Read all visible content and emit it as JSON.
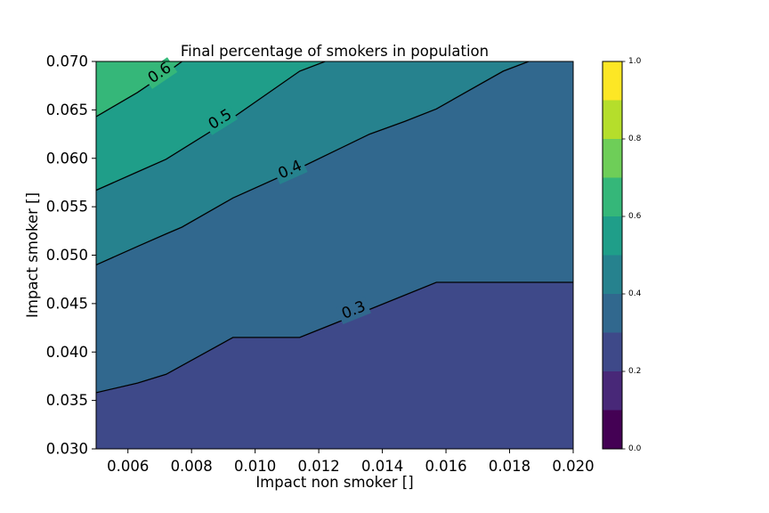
{
  "chart_data": {
    "type": "contour",
    "title": "Final percentage of smokers in population",
    "xlabel": "Impact non smoker []",
    "ylabel": "Impact smoker []",
    "xlim": [
      0.005,
      0.02
    ],
    "ylim": [
      0.03,
      0.07
    ],
    "x_ticks": [
      0.006,
      0.008,
      0.01,
      0.012,
      0.014,
      0.016,
      0.018,
      0.02
    ],
    "x_tick_labels": [
      "0.006",
      "0.008",
      "0.010",
      "0.012",
      "0.014",
      "0.016",
      "0.018",
      "0.020"
    ],
    "y_ticks": [
      0.03,
      0.035,
      0.04,
      0.045,
      0.05,
      0.055,
      0.06,
      0.065,
      0.07
    ],
    "y_tick_labels": [
      "0.030",
      "0.035",
      "0.040",
      "0.045",
      "0.050",
      "0.055",
      "0.060",
      "0.065",
      "0.070"
    ],
    "levels": [
      0.0,
      0.1,
      0.2,
      0.3,
      0.4,
      0.5,
      0.6,
      0.7,
      0.8,
      0.9,
      1.0
    ],
    "level_colors": [
      "#440154",
      "#482878",
      "#3e4989",
      "#31688e",
      "#26828e",
      "#1f9e89",
      "#35b779",
      "#6ece58",
      "#b5de2b",
      "#fde725"
    ],
    "contour_lines": [
      {
        "level": 0.3,
        "label": "0.3",
        "points": [
          [
            0.005,
            0.0358
          ],
          [
            0.0063,
            0.0368
          ],
          [
            0.0072,
            0.0377
          ],
          [
            0.0093,
            0.0415
          ],
          [
            0.0114,
            0.0415
          ],
          [
            0.0136,
            0.0444
          ],
          [
            0.0157,
            0.0472
          ],
          [
            0.02,
            0.0472
          ]
        ]
      },
      {
        "level": 0.4,
        "label": "0.4",
        "points": [
          [
            0.005,
            0.049
          ],
          [
            0.0063,
            0.0509
          ],
          [
            0.0072,
            0.0522
          ],
          [
            0.0077,
            0.0529
          ],
          [
            0.0093,
            0.0559
          ],
          [
            0.0114,
            0.059
          ],
          [
            0.0136,
            0.0625
          ],
          [
            0.0147,
            0.0638
          ],
          [
            0.0157,
            0.0651
          ],
          [
            0.0178,
            0.069
          ],
          [
            0.0186,
            0.07
          ]
        ]
      },
      {
        "level": 0.5,
        "label": "0.5",
        "points": [
          [
            0.005,
            0.0567
          ],
          [
            0.0063,
            0.0586
          ],
          [
            0.0072,
            0.0599
          ],
          [
            0.0093,
            0.0642
          ],
          [
            0.0114,
            0.069
          ],
          [
            0.0122,
            0.07
          ]
        ]
      },
      {
        "level": 0.6,
        "label": "0.6",
        "points": [
          [
            0.005,
            0.0643
          ],
          [
            0.0063,
            0.0668
          ],
          [
            0.0072,
            0.0688
          ],
          [
            0.0077,
            0.07
          ]
        ]
      }
    ],
    "contour_labels": [
      {
        "text": "0.3",
        "x": 0.0131,
        "y": 0.0443
      },
      {
        "text": "0.4",
        "x": 0.0111,
        "y": 0.0588
      },
      {
        "text": "0.5",
        "x": 0.0089,
        "y": 0.064
      },
      {
        "text": "0.6",
        "x": 0.007,
        "y": 0.0688
      }
    ],
    "colorbar": {
      "ticks": [
        0.0,
        0.2,
        0.4,
        0.6,
        0.8,
        1.0
      ],
      "tick_labels": [
        "0.0",
        "0.2",
        "0.4",
        "0.6",
        "0.8",
        "1.0"
      ],
      "range": [
        0.0,
        1.0
      ]
    },
    "grid": false
  }
}
